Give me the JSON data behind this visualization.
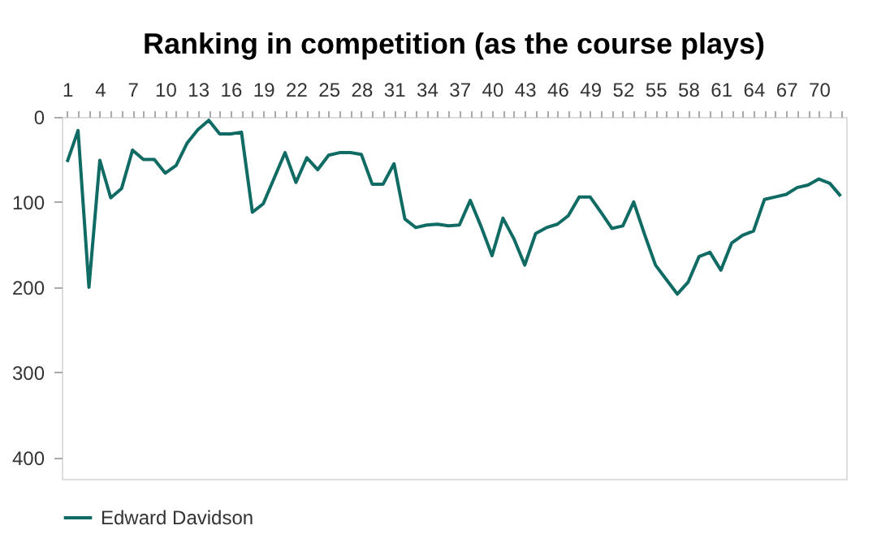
{
  "chart_data": {
    "type": "line",
    "title": "Ranking in competition (as the course plays)",
    "categories": [
      "1",
      null,
      null,
      "4",
      null,
      null,
      "7",
      null,
      null,
      "10",
      null,
      null,
      "13",
      null,
      null,
      "16",
      null,
      null,
      "19",
      null,
      null,
      "22",
      null,
      null,
      "25",
      null,
      null,
      "28",
      null,
      null,
      "31",
      null,
      null,
      "34",
      null,
      null,
      "37",
      null,
      null,
      "40",
      null,
      null,
      "43",
      null,
      null,
      "46",
      null,
      null,
      "49",
      null,
      null,
      "52",
      null,
      null,
      "55",
      null,
      null,
      "58",
      null,
      null,
      "61",
      null,
      null,
      "64",
      null,
      null,
      "67",
      null,
      null,
      "70",
      null,
      null
    ],
    "series": [
      {
        "name": "Edward Davidson",
        "color": "#0f6b63",
        "values": [
          53,
          16,
          200,
          51,
          95,
          84,
          39,
          50,
          50,
          66,
          57,
          31,
          15,
          4,
          20,
          20,
          18,
          112,
          102,
          72,
          42,
          77,
          48,
          62,
          45,
          42,
          42,
          44,
          79,
          79,
          55,
          120,
          130,
          127,
          126,
          128,
          127,
          98,
          129,
          163,
          119,
          143,
          174,
          137,
          130,
          126,
          116,
          94,
          94,
          112,
          131,
          128,
          100,
          138,
          174,
          191,
          208,
          194,
          164,
          159,
          180,
          148,
          139,
          134,
          97,
          94,
          91,
          83,
          80,
          73,
          78,
          93
        ]
      }
    ],
    "ylim": [
      425,
      0
    ],
    "yticks": [
      0,
      100,
      200,
      300,
      400
    ],
    "grid": false,
    "legend": "bottom",
    "marker": "none",
    "line_style": "solid"
  }
}
